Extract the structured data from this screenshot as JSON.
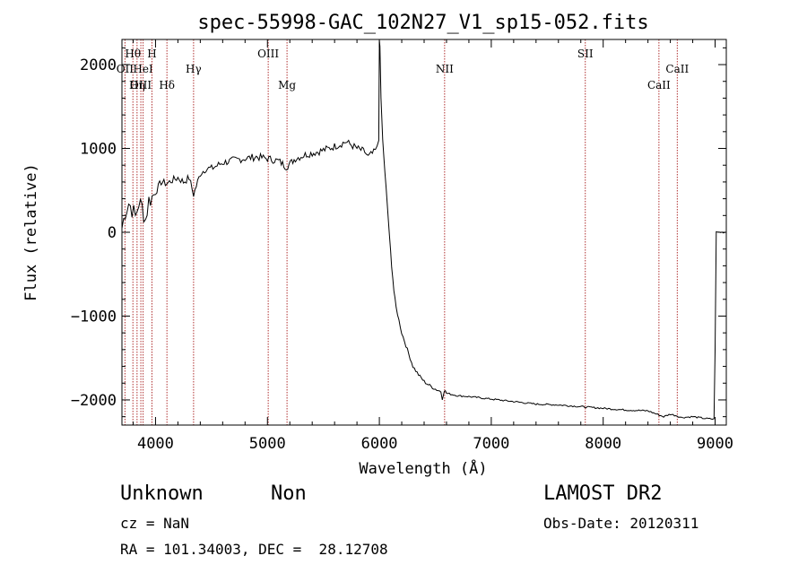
{
  "chart_data": {
    "type": "line",
    "title": "spec-55998-GAC_102N27_V1_sp15-052.fits",
    "xlabel": "Wavelength (Å)",
    "ylabel": "Flux (relative)",
    "xlim": [
      3700,
      9100
    ],
    "ylim": [
      -2300,
      2300
    ],
    "xticks": [
      4000,
      5000,
      6000,
      7000,
      8000,
      9000
    ],
    "yticks": [
      -2000,
      -1000,
      0,
      1000,
      2000
    ],
    "series": [
      {
        "x": [
          3700,
          3730,
          3760,
          3790,
          3820,
          3850,
          3880,
          3910,
          3940,
          3970,
          4000,
          4050,
          4100,
          4150,
          4200,
          4250,
          4300,
          4340,
          4400,
          4450,
          4500,
          4600,
          4700,
          4800,
          4900,
          5000,
          5100,
          5170,
          5250,
          5350,
          5450,
          5550,
          5650,
          5700,
          5800,
          5870,
          5900,
          5950,
          5980,
          5995,
          6000,
          6005,
          6015,
          6030,
          6050,
          6070,
          6090,
          6110,
          6130,
          6150,
          6200,
          6250,
          6300,
          6350,
          6400,
          6450,
          6500,
          6550,
          6563,
          6580,
          6600,
          6700,
          6800,
          7000,
          7200,
          7400,
          7600,
          7800,
          8000,
          8200,
          8400,
          8500,
          8540,
          8600,
          8660,
          8700,
          8800,
          8900,
          8990,
          9000,
          9010,
          9100
        ],
        "y": [
          50,
          250,
          350,
          280,
          180,
          350,
          300,
          150,
          380,
          420,
          480,
          600,
          580,
          620,
          650,
          600,
          650,
          450,
          700,
          760,
          760,
          830,
          860,
          880,
          900,
          880,
          850,
          780,
          880,
          930,
          960,
          1000,
          1050,
          1080,
          1000,
          960,
          900,
          950,
          1000,
          1100,
          2300,
          2200,
          1600,
          1100,
          700,
          350,
          -50,
          -400,
          -700,
          -900,
          -1200,
          -1400,
          -1600,
          -1700,
          -1780,
          -1830,
          -1870,
          -1900,
          -1980,
          -1880,
          -1920,
          -1950,
          -1960,
          -1990,
          -2020,
          -2050,
          -2060,
          -2080,
          -2100,
          -2120,
          -2130,
          -2180,
          -2200,
          -2170,
          -2190,
          -2210,
          -2200,
          -2220,
          -2230,
          -1400,
          0,
          0
        ]
      }
    ],
    "lines": [
      {
        "label": "Hθ",
        "x": 3798,
        "row": 0
      },
      {
        "label": "OII",
        "x": 3727,
        "row": 1
      },
      {
        "label": "OIII",
        "x": 3869,
        "row": 2
      },
      {
        "label": "Hη",
        "x": 3835,
        "row": 2
      },
      {
        "label": "HeI",
        "x": 3889,
        "row": 1
      },
      {
        "label": "H",
        "x": 3968,
        "row": 0
      },
      {
        "label": "Hδ",
        "x": 4102,
        "row": 2
      },
      {
        "label": "Hγ",
        "x": 4340,
        "row": 1
      },
      {
        "label": "OIII",
        "x": 5007,
        "row": 0
      },
      {
        "label": "Mg",
        "x": 5175,
        "row": 2
      },
      {
        "label": "NII",
        "x": 6583,
        "row": 1
      },
      {
        "label": "SII",
        "x": 7840,
        "row": 0
      },
      {
        "label": "CaII",
        "x": 8662,
        "row": 1
      },
      {
        "label": "CaII",
        "x": 8498,
        "row": 2
      }
    ]
  },
  "info": {
    "object_class": "Unknown",
    "subclass": "Non",
    "cz": "cz = NaN",
    "radec": "RA = 101.34003, DEC =  28.12708",
    "survey": "LAMOST DR2",
    "obs_date": "Obs-Date: 20120311"
  },
  "colors": {
    "spectrum": "#000000",
    "line_marker": "#b03030"
  }
}
